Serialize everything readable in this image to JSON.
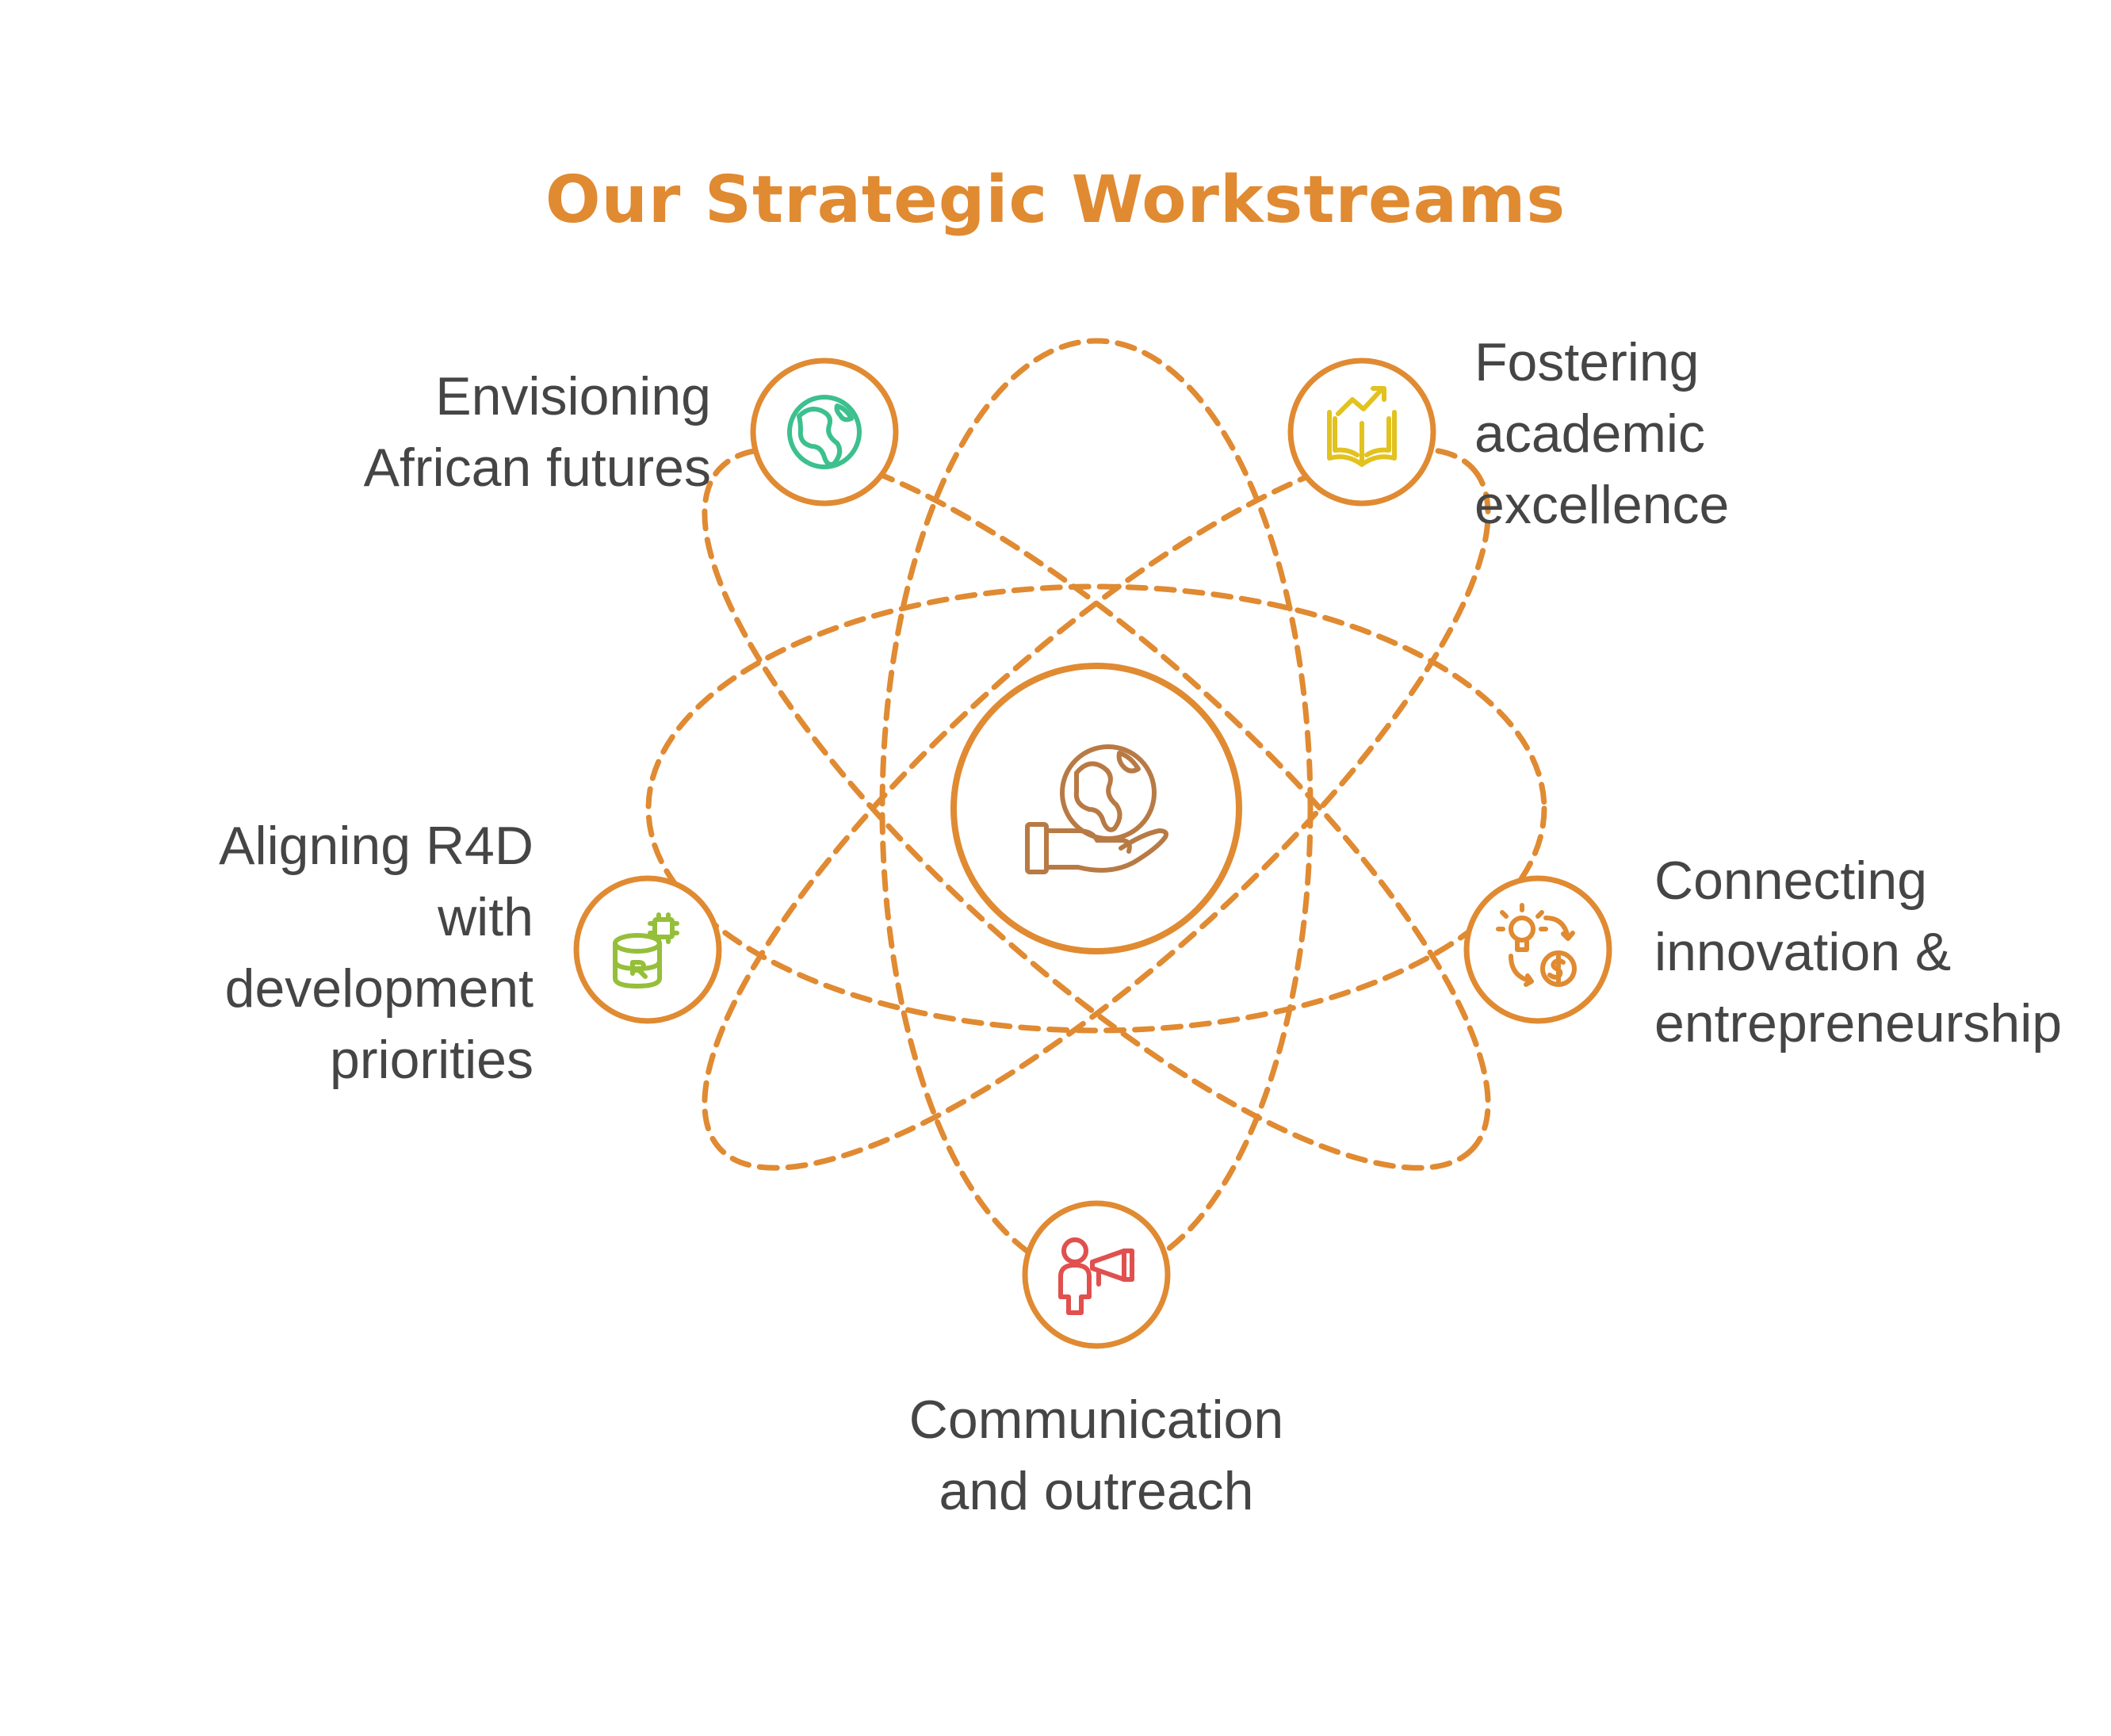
{
  "title": "Our Strategic Workstreams",
  "colors": {
    "title": "#E08A32",
    "accent": "#E08A32",
    "center_icon": "#B87A45",
    "text": "#454545"
  },
  "center": {
    "icon": "hand-holding-globe-icon"
  },
  "workstreams": [
    {
      "label": "Envisioning\nAfrican futures",
      "icon": "globe-africa-icon",
      "icon_color": "#3CC08E"
    },
    {
      "label": "Fostering\nacademic\nexcellence",
      "icon": "book-growth-icon",
      "icon_color": "#E2C21E"
    },
    {
      "label": "Connecting\ninnovation &\nentrepreneurship",
      "icon": "idea-money-cycle-icon",
      "icon_color": "#E08A32"
    },
    {
      "label": "Communication\nand outreach",
      "icon": "megaphone-person-icon",
      "icon_color": "#E0504E"
    },
    {
      "label": "Aligning R4D\nwith\ndevelopment\npriorities",
      "icon": "database-chip-icon",
      "icon_color": "#95BF3A"
    }
  ]
}
